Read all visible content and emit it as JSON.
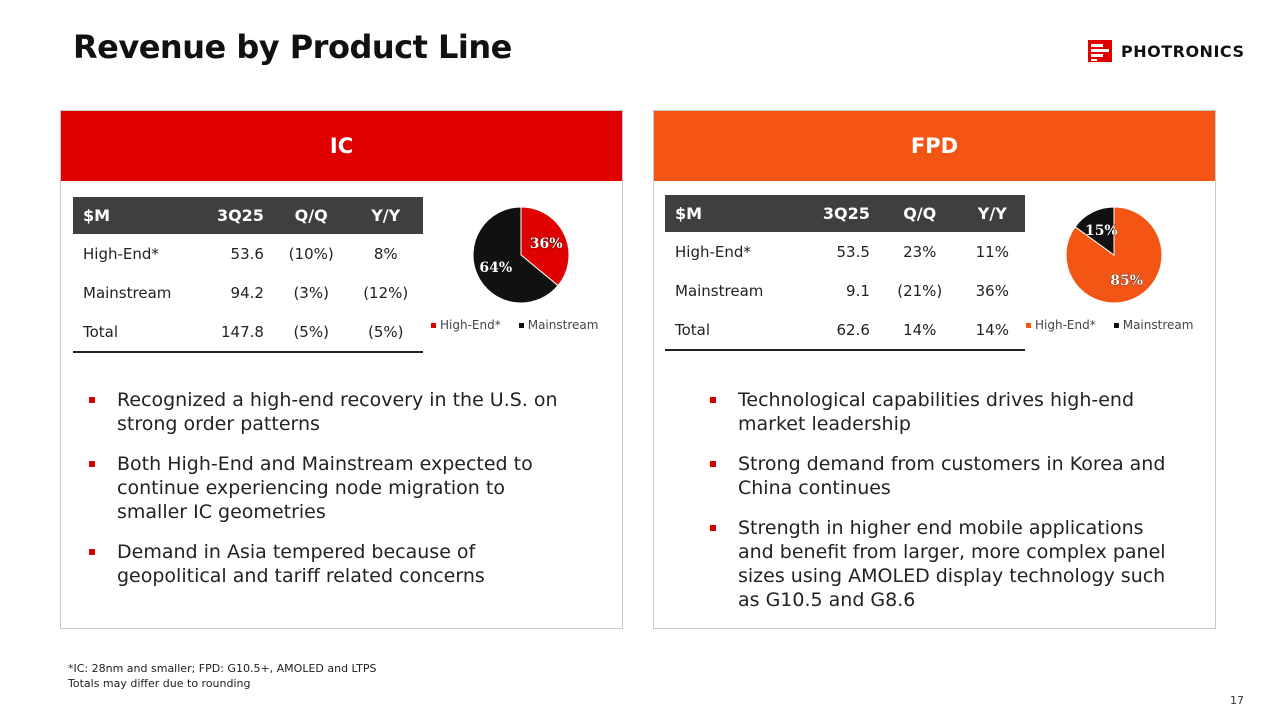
{
  "title": "Revenue by Product Line",
  "brand": {
    "name": "PHOTRONICS",
    "color": "#e00000"
  },
  "ic": {
    "header": "IC",
    "table": {
      "headers": [
        "$M",
        "3Q25",
        "Q/Q",
        "Y/Y"
      ],
      "rows": [
        [
          "High-End*",
          "53.6",
          "(10%)",
          "8%"
        ],
        [
          "Mainstream",
          "94.2",
          "(3%)",
          "(12%)"
        ],
        [
          "Total",
          "147.8",
          "(5%)",
          "(5%)"
        ]
      ]
    },
    "bullets": [
      "Recognized a high-end recovery in the U.S. on strong order patterns",
      "Both High-End and Mainstream expected to continue experiencing node migration to smaller IC geometries",
      "Demand in Asia tempered because of geopolitical and tariff related concerns"
    ]
  },
  "fpd": {
    "header": "FPD",
    "table": {
      "headers": [
        "$M",
        "3Q25",
        "Q/Q",
        "Y/Y"
      ],
      "rows": [
        [
          "High-End*",
          "53.5",
          "23%",
          "11%"
        ],
        [
          "Mainstream",
          "9.1",
          "(21%)",
          "36%"
        ],
        [
          "Total",
          "62.6",
          "14%",
          "14%"
        ]
      ]
    },
    "bullets": [
      "Technological capabilities drives high-end market leadership",
      "Strong demand from customers in Korea and China continues",
      "Strength in higher end mobile applications and benefit from larger, more complex panel sizes using AMOLED display technology such as G10.5 and G8.6"
    ]
  },
  "chart_data": [
    {
      "type": "pie",
      "categories": [
        "High-End*",
        "Mainstream"
      ],
      "values": [
        36,
        64
      ],
      "labels": [
        "36%",
        "64%"
      ],
      "colors": [
        "#e00000",
        "#111111"
      ],
      "legend": "bottom"
    },
    {
      "type": "pie",
      "categories": [
        "High-End*",
        "Mainstream"
      ],
      "values": [
        85,
        15
      ],
      "labels": [
        "85%",
        "15%"
      ],
      "colors": [
        "#f25514",
        "#111111"
      ],
      "legend": "bottom"
    }
  ],
  "footnote": {
    "line1": "*IC: 28nm and smaller; FPD: G10.5+, AMOLED  and LTPS",
    "line2": "Totals may differ due to rounding"
  },
  "page_number": "17"
}
